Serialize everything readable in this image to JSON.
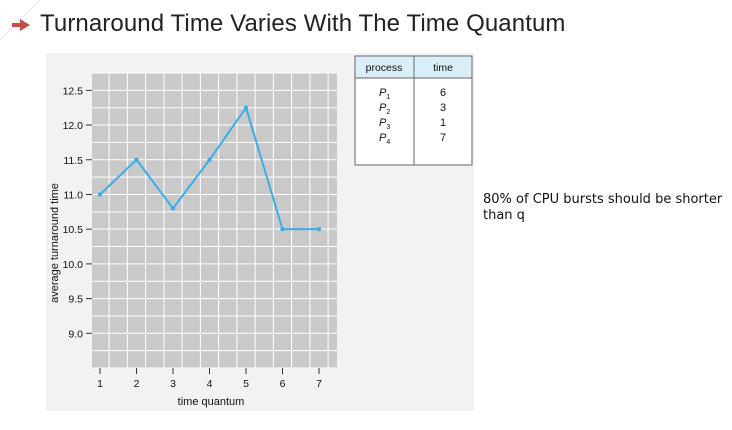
{
  "slide": {
    "title": "Turnaround Time Varies With The Time Quantum",
    "note": "80% of CPU bursts should be shorter than q",
    "accent_color": "#c0504d",
    "icons": {
      "bullet": "triangle-bullet-icon"
    }
  },
  "chart_data": {
    "type": "line",
    "xlabel": "time quantum",
    "ylabel": "average turnaround time",
    "x_ticks": [
      "1",
      "2",
      "3",
      "4",
      "5",
      "6",
      "7"
    ],
    "y_ticks": [
      "9.0",
      "9.5",
      "10.0",
      "10.5",
      "11.0",
      "11.5",
      "12.0",
      "12.5"
    ],
    "xlim": [
      1,
      7
    ],
    "ylim": [
      8.5,
      12.75
    ],
    "grid": true,
    "line_color": "#3aaeea",
    "series": [
      {
        "x": [
          1,
          2,
          3,
          4,
          5,
          6,
          7
        ],
        "y": [
          11.0,
          11.5,
          10.8,
          11.5,
          12.25,
          10.5,
          10.5
        ]
      }
    ]
  },
  "process_table": {
    "headers": [
      "process",
      "time"
    ],
    "rows": [
      {
        "process": "P",
        "sub": "1",
        "time": "6"
      },
      {
        "process": "P",
        "sub": "2",
        "time": "3"
      },
      {
        "process": "P",
        "sub": "3",
        "time": "1"
      },
      {
        "process": "P",
        "sub": "4",
        "time": "7"
      }
    ]
  }
}
